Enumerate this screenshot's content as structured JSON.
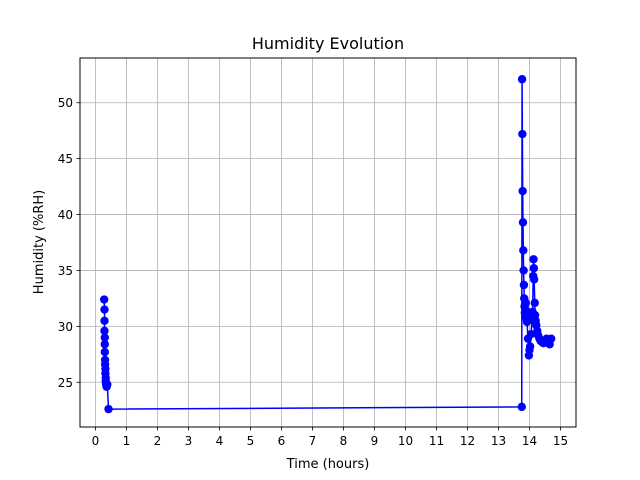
{
  "chart_data": {
    "type": "line",
    "title": "Humidity Evolution",
    "xlabel": "Time (hours)",
    "ylabel": "Humidity (%RH)",
    "xlim": [
      -0.5,
      15.5
    ],
    "ylim": [
      21,
      54
    ],
    "xticks": [
      0,
      1,
      2,
      3,
      4,
      5,
      6,
      7,
      8,
      9,
      10,
      11,
      12,
      13,
      14,
      15
    ],
    "yticks": [
      25,
      30,
      35,
      40,
      45,
      50
    ],
    "grid": true,
    "colors": {
      "line": "#0000ff",
      "grid": "#b0b0b0"
    },
    "series": [
      {
        "marker": "circle",
        "x": [
          0.28,
          0.29,
          0.29,
          0.29,
          0.3,
          0.3,
          0.3,
          0.31,
          0.31,
          0.32,
          0.32,
          0.33,
          0.33,
          0.34,
          0.35,
          0.36,
          0.38,
          0.42,
          13.75,
          13.76,
          13.77,
          13.78,
          13.79,
          13.8,
          13.81,
          13.82,
          13.83,
          13.84,
          13.85,
          13.86,
          13.87,
          13.88,
          13.9,
          13.92,
          13.95,
          13.98,
          14.0,
          14.02,
          14.05,
          14.08,
          14.1,
          14.12,
          14.13,
          14.14,
          14.15,
          14.17,
          14.18,
          14.2,
          14.22,
          14.25,
          14.28,
          14.32,
          14.36,
          14.4,
          14.45,
          14.5,
          14.55,
          14.6,
          14.65,
          14.7
        ],
        "y": [
          32.4,
          31.5,
          30.5,
          29.6,
          29.0,
          28.4,
          27.7,
          27.0,
          26.6,
          26.2,
          25.8,
          25.4,
          25.1,
          24.9,
          24.7,
          24.6,
          24.8,
          22.6,
          22.8,
          52.1,
          47.2,
          42.1,
          39.3,
          36.8,
          35.0,
          33.7,
          32.5,
          31.8,
          31.2,
          30.8,
          31.5,
          32.1,
          31.0,
          30.4,
          28.9,
          27.4,
          27.9,
          28.2,
          29.3,
          30.6,
          31.3,
          34.5,
          36.0,
          35.2,
          34.2,
          32.1,
          31.0,
          30.5,
          30.1,
          29.6,
          29.2,
          28.9,
          28.7,
          28.6,
          28.5,
          28.7,
          28.9,
          28.6,
          28.4,
          28.9
        ]
      }
    ]
  }
}
